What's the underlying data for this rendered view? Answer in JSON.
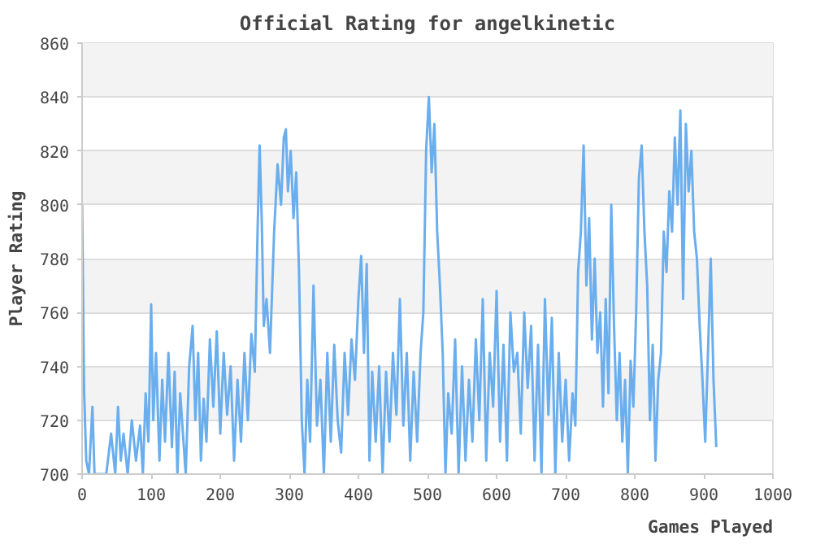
{
  "chart_data": {
    "type": "line",
    "title": "Official Rating for angelkinetic",
    "xlabel": "Games Played",
    "ylabel": "Player Rating",
    "xlim": [
      0,
      1000
    ],
    "ylim": [
      700,
      860
    ],
    "xticks": [
      0,
      100,
      200,
      300,
      400,
      500,
      600,
      700,
      800,
      900,
      1000
    ],
    "yticks": [
      700,
      720,
      740,
      760,
      780,
      800,
      820,
      840,
      860
    ],
    "grid": "y",
    "series": [
      {
        "color": "#6aaeee",
        "x": [
          0,
          3,
          6,
          10,
          15,
          18,
          22,
          28,
          35,
          42,
          48,
          52,
          56,
          60,
          66,
          72,
          78,
          84,
          88,
          92,
          96,
          100,
          103,
          107,
          112,
          116,
          120,
          125,
          130,
          134,
          138,
          142,
          146,
          150,
          155,
          160,
          164,
          168,
          172,
          176,
          180,
          185,
          190,
          195,
          200,
          205,
          210,
          215,
          220,
          225,
          230,
          235,
          240,
          245,
          250,
          254,
          257,
          260,
          263,
          267,
          272,
          278,
          283,
          288,
          292,
          295,
          298,
          302,
          306,
          310,
          314,
          318,
          322,
          326,
          330,
          335,
          340,
          345,
          350,
          355,
          360,
          365,
          370,
          375,
          380,
          385,
          390,
          395,
          400,
          404,
          408,
          412,
          416,
          420,
          425,
          430,
          435,
          440,
          445,
          450,
          455,
          460,
          465,
          470,
          475,
          480,
          485,
          490,
          494,
          498,
          502,
          506,
          510,
          514,
          518,
          522,
          526,
          530,
          535,
          540,
          545,
          550,
          555,
          560,
          565,
          570,
          575,
          580,
          585,
          590,
          595,
          600,
          605,
          610,
          615,
          620,
          625,
          630,
          635,
          640,
          645,
          650,
          655,
          660,
          665,
          670,
          675,
          680,
          685,
          690,
          695,
          700,
          705,
          710,
          714,
          718,
          722,
          726,
          730,
          734,
          738,
          742,
          746,
          750,
          754,
          758,
          762,
          766,
          770,
          774,
          778,
          782,
          786,
          790,
          794,
          798,
          802,
          806,
          810,
          814,
          818,
          822,
          826,
          830,
          834,
          838,
          842,
          846,
          850,
          854,
          858,
          862,
          866,
          870,
          874,
          878,
          882,
          886,
          890,
          894,
          898,
          902,
          906,
          910,
          914,
          918
        ],
        "values": [
          800,
          730,
          705,
          700,
          725,
          700,
          700,
          700,
          700,
          715,
          700,
          725,
          705,
          715,
          700,
          720,
          705,
          718,
          700,
          730,
          712,
          763,
          720,
          745,
          705,
          735,
          712,
          745,
          710,
          738,
          700,
          730,
          715,
          700,
          740,
          755,
          720,
          745,
          705,
          728,
          712,
          750,
          725,
          753,
          715,
          745,
          722,
          740,
          705,
          735,
          712,
          745,
          720,
          752,
          738,
          790,
          822,
          795,
          755,
          765,
          745,
          790,
          815,
          800,
          825,
          828,
          805,
          820,
          795,
          812,
          775,
          720,
          700,
          735,
          712,
          770,
          718,
          735,
          700,
          745,
          712,
          748,
          720,
          708,
          745,
          722,
          750,
          735,
          765,
          781,
          745,
          778,
          705,
          738,
          712,
          740,
          700,
          738,
          712,
          745,
          722,
          765,
          718,
          745,
          705,
          738,
          712,
          745,
          760,
          820,
          840,
          812,
          830,
          790,
          770,
          745,
          700,
          730,
          715,
          750,
          700,
          740,
          705,
          735,
          712,
          750,
          720,
          765,
          705,
          745,
          725,
          768,
          712,
          748,
          705,
          760,
          738,
          745,
          715,
          760,
          732,
          755,
          705,
          748,
          700,
          765,
          722,
          758,
          700,
          745,
          712,
          735,
          705,
          730,
          718,
          775,
          790,
          822,
          770,
          795,
          750,
          780,
          745,
          760,
          725,
          765,
          730,
          800,
          755,
          720,
          745,
          712,
          735,
          700,
          742,
          725,
          760,
          810,
          822,
          790,
          770,
          720,
          748,
          705,
          735,
          745,
          790,
          775,
          805,
          790,
          825,
          800,
          835,
          765,
          830,
          805,
          820,
          790,
          780,
          755,
          735,
          712,
          745,
          780,
          735,
          710
        ]
      }
    ]
  }
}
